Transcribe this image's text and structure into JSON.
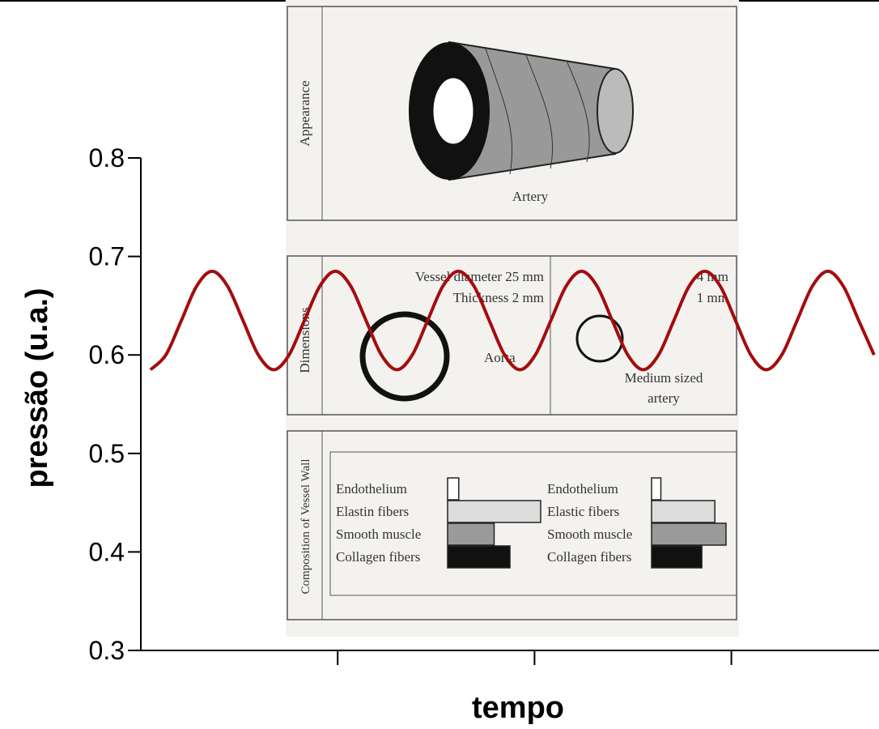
{
  "chart_data": {
    "type": "line",
    "ylabel": "pressão (u.a.)",
    "xlabel": "tempo",
    "xlim": [
      0,
      3.75
    ],
    "xticks": [
      1,
      2,
      3
    ],
    "ylim": [
      0.3,
      0.8
    ],
    "yticks": [
      0.3,
      0.4,
      0.5,
      0.6,
      0.7,
      0.8
    ],
    "color": "#a30d0d",
    "x": [
      0.049,
      0.127,
      0.206,
      0.284,
      0.362,
      0.44,
      0.519,
      0.597,
      0.675,
      0.753,
      0.831,
      0.91,
      0.988,
      1.066,
      1.144,
      1.222,
      1.301,
      1.379,
      1.457,
      1.535,
      1.613,
      1.692,
      1.77,
      1.848,
      1.926,
      2.004,
      2.083,
      2.161,
      2.239,
      2.317,
      2.395,
      2.474,
      2.552,
      2.63,
      2.708,
      2.786,
      2.865,
      2.943,
      3.021,
      3.099,
      3.177,
      3.256,
      3.334,
      3.412,
      3.49,
      3.568,
      3.647,
      3.725
    ],
    "values": [
      0.585,
      0.6,
      0.635,
      0.67,
      0.685,
      0.67,
      0.635,
      0.6,
      0.585,
      0.6,
      0.635,
      0.67,
      0.685,
      0.67,
      0.635,
      0.6,
      0.585,
      0.6,
      0.635,
      0.67,
      0.685,
      0.67,
      0.635,
      0.6,
      0.585,
      0.6,
      0.635,
      0.67,
      0.685,
      0.67,
      0.635,
      0.6,
      0.585,
      0.6,
      0.635,
      0.67,
      0.685,
      0.67,
      0.635,
      0.6,
      0.585,
      0.6,
      0.635,
      0.67,
      0.685,
      0.67,
      0.635,
      0.6
    ]
  },
  "background_figure": {
    "appearance": {
      "label": "Appearance",
      "caption": "Artery"
    },
    "dimensions": {
      "label": "Dimensions",
      "aorta_diameter": "Vessel diameter 25 mm",
      "aorta_thickness": "Thickness 2 mm",
      "aorta": "Aorta",
      "medium_diameter": "4 mm",
      "medium_thickness": "1 mm",
      "medium_1": "Medium sized",
      "medium_2": "artery"
    },
    "composition": {
      "label": "Composition of Vessel Wall",
      "colors": [
        "#ffffff",
        "#dcdcdc",
        "#9a9a9a",
        "#111111"
      ],
      "aorta": {
        "labels": [
          "Endothelium",
          "Elastin fibers",
          "Smooth muscle",
          "Collagen fibers"
        ],
        "values": [
          0.12,
          1.0,
          0.5,
          0.67
        ]
      },
      "medium": {
        "labels": [
          "Endothelium",
          "Elastic fibers",
          "Smooth muscle",
          "Collagen fibers"
        ],
        "values": [
          0.1,
          0.68,
          0.8,
          0.54
        ]
      }
    }
  }
}
